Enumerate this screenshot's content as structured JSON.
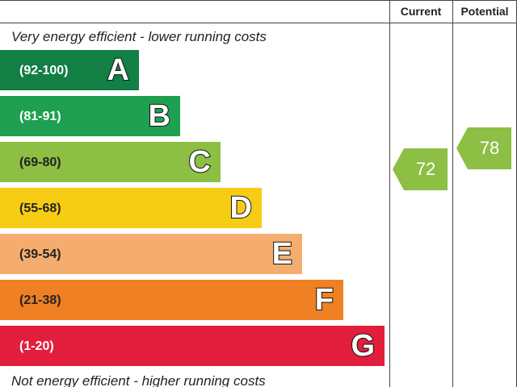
{
  "header": {
    "current": "Current",
    "potential": "Potential"
  },
  "top_note": "Very energy efficient - lower running costs",
  "bottom_note": "Not energy efficient - higher running costs",
  "bands": [
    {
      "range": "(92-100)",
      "letter": "A"
    },
    {
      "range": "(81-91)",
      "letter": "B"
    },
    {
      "range": "(69-80)",
      "letter": "C"
    },
    {
      "range": "(55-68)",
      "letter": "D"
    },
    {
      "range": "(39-54)",
      "letter": "E"
    },
    {
      "range": "(21-38)",
      "letter": "F"
    },
    {
      "range": "(1-20)",
      "letter": "G"
    }
  ],
  "current": 72,
  "potential": 78
}
